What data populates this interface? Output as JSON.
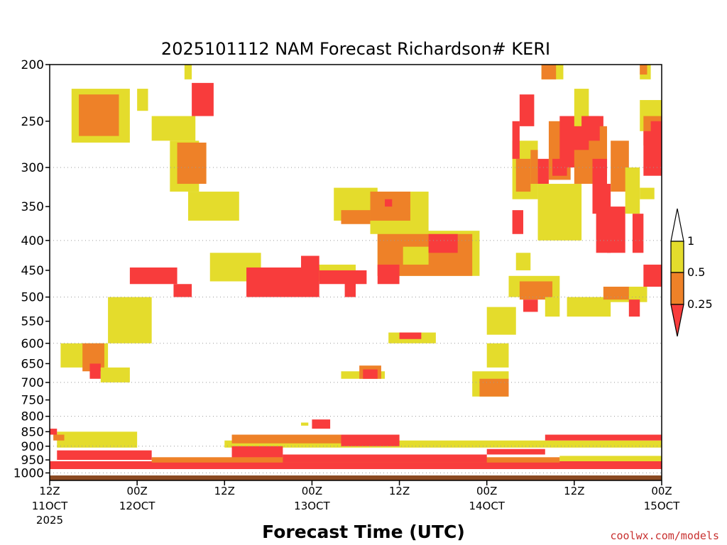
{
  "chart_data": {
    "type": "heatmap",
    "title": "2025101112 NAM Forecast Richardson# KERI",
    "xlabel": "Forecast Time (UTC)",
    "ylabel": "",
    "y_scale": "log",
    "ylim": [
      200,
      1030
    ],
    "xlim_hours": [
      0,
      84
    ],
    "y_ticks": [
      200,
      250,
      300,
      350,
      400,
      450,
      500,
      550,
      600,
      650,
      700,
      750,
      800,
      850,
      900,
      950,
      1000
    ],
    "y_gridlines": [
      300,
      400,
      500,
      600,
      700,
      800,
      900,
      1000
    ],
    "x_ticks": [
      {
        "hour": 0,
        "top": "12Z",
        "bottom": "11OCT",
        "extra": "2025"
      },
      {
        "hour": 12,
        "top": "00Z",
        "bottom": "12OCT",
        "extra": ""
      },
      {
        "hour": 24,
        "top": "12Z",
        "bottom": "",
        "extra": ""
      },
      {
        "hour": 36,
        "top": "00Z",
        "bottom": "13OCT",
        "extra": ""
      },
      {
        "hour": 48,
        "top": "12Z",
        "bottom": "",
        "extra": ""
      },
      {
        "hour": 60,
        "top": "00Z",
        "bottom": "14OCT",
        "extra": ""
      },
      {
        "hour": 72,
        "top": "12Z",
        "bottom": "",
        "extra": ""
      },
      {
        "hour": 84,
        "top": "00Z",
        "bottom": "15OCT",
        "extra": ""
      }
    ],
    "colorbar": {
      "levels": [
        0.25,
        0.5,
        1
      ],
      "labels": [
        "0.25",
        "0.5",
        "1"
      ],
      "colors": {
        "lt_0.25": "#f83c3c",
        "0.25_0.5": "#ee8128",
        "0.5_1": "#e4dc2c",
        "gt_1": "#ffffff"
      }
    },
    "colors": {
      "band_lt_0.25": "#f83c3c",
      "band_0.25_0.5": "#ee8128",
      "band_0.5_1": "#e4dc2c",
      "ground": "#8b4a22"
    },
    "ground_below_hpa": 1010,
    "regions": [
      {
        "band": "0.5_1",
        "h": [
          3,
          11
        ],
        "p": [
          220,
          272
        ]
      },
      {
        "band": "0.25_0.5",
        "h": [
          4,
          9.5
        ],
        "p": [
          225,
          265
        ]
      },
      {
        "band": "0.5_1",
        "h": [
          12,
          13.5
        ],
        "p": [
          220,
          240
        ]
      },
      {
        "band": "0.5_1",
        "h": [
          14,
          20
        ],
        "p": [
          245,
          270
        ]
      },
      {
        "band": "0.5_1",
        "h": [
          16.5,
          20.5
        ],
        "p": [
          270,
          330
        ]
      },
      {
        "band": "0.25_0.5",
        "h": [
          17.5,
          21.5
        ],
        "p": [
          272,
          320
        ]
      },
      {
        "band": "0.5_1",
        "h": [
          19,
          26
        ],
        "p": [
          330,
          370
        ]
      },
      {
        "band": "lt_0.25",
        "h": [
          19.5,
          22.5
        ],
        "p": [
          215,
          245
        ]
      },
      {
        "band": "0.5_1",
        "h": [
          18.5,
          19.5
        ],
        "p": [
          200,
          212
        ]
      },
      {
        "band": "0.5_1",
        "h": [
          39,
          45
        ],
        "p": [
          325,
          370
        ]
      },
      {
        "band": "0.25_0.5",
        "h": [
          40,
          44
        ],
        "p": [
          355,
          375
        ]
      },
      {
        "band": "0.5_1",
        "h": [
          44,
          52
        ],
        "p": [
          330,
          390
        ]
      },
      {
        "band": "0.25_0.5",
        "h": [
          44,
          49.5
        ],
        "p": [
          330,
          370
        ]
      },
      {
        "band": "lt_0.25",
        "h": [
          46,
          47
        ],
        "p": [
          340,
          350
        ]
      },
      {
        "band": "0.5_1",
        "h": [
          45,
          59
        ],
        "p": [
          385,
          460
        ]
      },
      {
        "band": "0.25_0.5",
        "h": [
          45,
          58
        ],
        "p": [
          390,
          460
        ]
      },
      {
        "band": "0.5_1",
        "h": [
          48.5,
          52
        ],
        "p": [
          410,
          440
        ]
      },
      {
        "band": "lt_0.25",
        "h": [
          52,
          56
        ],
        "p": [
          390,
          420
        ]
      },
      {
        "band": "lt_0.25",
        "h": [
          45,
          48
        ],
        "p": [
          440,
          475
        ]
      },
      {
        "band": "0.5_1",
        "h": [
          22,
          29
        ],
        "p": [
          420,
          470
        ]
      },
      {
        "band": "0.5_1",
        "h": [
          36,
          42
        ],
        "p": [
          440,
          470
        ]
      },
      {
        "band": "lt_0.25",
        "h": [
          27,
          37
        ],
        "p": [
          445,
          500
        ]
      },
      {
        "band": "lt_0.25",
        "h": [
          34.5,
          37
        ],
        "p": [
          425,
          450
        ]
      },
      {
        "band": "lt_0.25",
        "h": [
          37,
          43.5
        ],
        "p": [
          450,
          475
        ]
      },
      {
        "band": "lt_0.25",
        "h": [
          40.5,
          42
        ],
        "p": [
          470,
          500
        ]
      },
      {
        "band": "lt_0.25",
        "h": [
          11,
          17.5
        ],
        "p": [
          445,
          475
        ]
      },
      {
        "band": "lt_0.25",
        "h": [
          17,
          19.5
        ],
        "p": [
          475,
          500
        ]
      },
      {
        "band": "0.5_1",
        "h": [
          8,
          14
        ],
        "p": [
          500,
          600
        ]
      },
      {
        "band": "0.5_1",
        "h": [
          1.5,
          8
        ],
        "p": [
          600,
          660
        ]
      },
      {
        "band": "0.25_0.5",
        "h": [
          4.5,
          7.5
        ],
        "p": [
          600,
          670
        ]
      },
      {
        "band": "lt_0.25",
        "h": [
          5.5,
          7
        ],
        "p": [
          650,
          690
        ]
      },
      {
        "band": "0.5_1",
        "h": [
          7,
          11
        ],
        "p": [
          660,
          700
        ]
      },
      {
        "band": "0.5_1",
        "h": [
          40,
          46
        ],
        "p": [
          670,
          690
        ]
      },
      {
        "band": "0.25_0.5",
        "h": [
          42.5,
          45.5
        ],
        "p": [
          655,
          690
        ]
      },
      {
        "band": "lt_0.25",
        "h": [
          43,
          45
        ],
        "p": [
          665,
          690
        ]
      },
      {
        "band": "0.5_1",
        "h": [
          46.5,
          53
        ],
        "p": [
          575,
          600
        ]
      },
      {
        "band": "lt_0.25",
        "h": [
          48,
          51
        ],
        "p": [
          575,
          590
        ]
      },
      {
        "band": "0.5_1",
        "h": [
          58,
          63
        ],
        "p": [
          670,
          740
        ]
      },
      {
        "band": "0.25_0.5",
        "h": [
          59,
          63
        ],
        "p": [
          690,
          740
        ]
      },
      {
        "band": "0.5_1",
        "h": [
          60,
          63
        ],
        "p": [
          600,
          660
        ]
      },
      {
        "band": "0.5_1",
        "h": [
          60,
          64
        ],
        "p": [
          520,
          580
        ]
      },
      {
        "band": "0.5_1",
        "h": [
          63,
          70
        ],
        "p": [
          460,
          500
        ]
      },
      {
        "band": "0.25_0.5",
        "h": [
          64.5,
          69
        ],
        "p": [
          470,
          505
        ]
      },
      {
        "band": "lt_0.25",
        "h": [
          65,
          67
        ],
        "p": [
          505,
          530
        ]
      },
      {
        "band": "0.5_1",
        "h": [
          64,
          66
        ],
        "p": [
          420,
          450
        ]
      },
      {
        "band": "0.5_1",
        "h": [
          68,
          70
        ],
        "p": [
          500,
          540
        ]
      },
      {
        "band": "0.5_1",
        "h": [
          71,
          77
        ],
        "p": [
          500,
          540
        ]
      },
      {
        "band": "0.5_1",
        "h": [
          76,
          82
        ],
        "p": [
          480,
          510
        ]
      },
      {
        "band": "0.25_0.5",
        "h": [
          76,
          79.5
        ],
        "p": [
          480,
          505
        ]
      },
      {
        "band": "lt_0.25",
        "h": [
          79.5,
          81
        ],
        "p": [
          505,
          540
        ]
      },
      {
        "band": "lt_0.25",
        "h": [
          81.5,
          84
        ],
        "p": [
          440,
          480
        ]
      },
      {
        "band": "0.5_1",
        "h": [
          63.5,
          67
        ],
        "p": [
          270,
          340
        ]
      },
      {
        "band": "0.25_0.5",
        "h": [
          64,
          66
        ],
        "p": [
          290,
          330
        ]
      },
      {
        "band": "lt_0.25",
        "h": [
          64.5,
          66.5
        ],
        "p": [
          225,
          255
        ]
      },
      {
        "band": "lt_0.25",
        "h": [
          63.5,
          64.5
        ],
        "p": [
          250,
          290
        ]
      },
      {
        "band": "lt_0.25",
        "h": [
          63.5,
          65
        ],
        "p": [
          355,
          390
        ]
      },
      {
        "band": "0.25_0.5",
        "h": [
          66,
          67
        ],
        "p": [
          280,
          320
        ]
      },
      {
        "band": "lt_0.25",
        "h": [
          67,
          68.5
        ],
        "p": [
          290,
          320
        ]
      },
      {
        "band": "lt_0.25",
        "h": [
          68,
          70
        ],
        "p": [
          355,
          385
        ]
      },
      {
        "band": "0.5_1",
        "h": [
          67,
          73
        ],
        "p": [
          320,
          400
        ]
      },
      {
        "band": "0.25_0.5",
        "h": [
          68.5,
          71.5
        ],
        "p": [
          250,
          315
        ]
      },
      {
        "band": "lt_0.25",
        "h": [
          69,
          71
        ],
        "p": [
          290,
          310
        ]
      },
      {
        "band": "lt_0.25",
        "h": [
          70,
          76
        ],
        "p": [
          245,
          300
        ]
      },
      {
        "band": "0.25_0.5",
        "h": [
          72,
          75
        ],
        "p": [
          280,
          320
        ]
      },
      {
        "band": "0.25_0.5",
        "h": [
          74,
          76.5
        ],
        "p": [
          255,
          310
        ]
      },
      {
        "band": "lt_0.25",
        "h": [
          74.5,
          76.5
        ],
        "p": [
          290,
          360
        ]
      },
      {
        "band": "lt_0.25",
        "h": [
          75,
          77
        ],
        "p": [
          320,
          420
        ]
      },
      {
        "band": "0.5_1",
        "h": [
          72,
          74
        ],
        "p": [
          220,
          255
        ]
      },
      {
        "band": "lt_0.25",
        "h": [
          73,
          75.5
        ],
        "p": [
          245,
          270
        ]
      },
      {
        "band": "0.25_0.5",
        "h": [
          77,
          79.5
        ],
        "p": [
          270,
          330
        ]
      },
      {
        "band": "lt_0.25",
        "h": [
          76.5,
          79
        ],
        "p": [
          350,
          420
        ]
      },
      {
        "band": "0.5_1",
        "h": [
          79,
          81
        ],
        "p": [
          300,
          360
        ]
      },
      {
        "band": "lt_0.25",
        "h": [
          80,
          81.5
        ],
        "p": [
          360,
          420
        ]
      },
      {
        "band": "0.5_1",
        "h": [
          81,
          84
        ],
        "p": [
          230,
          260
        ]
      },
      {
        "band": "0.25_0.5",
        "h": [
          81.5,
          84
        ],
        "p": [
          245,
          275
        ]
      },
      {
        "band": "lt_0.25",
        "h": [
          81.5,
          84
        ],
        "p": [
          260,
          310
        ]
      },
      {
        "band": "lt_0.25",
        "h": [
          82.5,
          84
        ],
        "p": [
          250,
          270
        ]
      },
      {
        "band": "0.5_1",
        "h": [
          81,
          83
        ],
        "p": [
          325,
          340
        ]
      },
      {
        "band": "0.5_1",
        "h": [
          67.5,
          70.5
        ],
        "p": [
          200,
          212
        ]
      },
      {
        "band": "0.25_0.5",
        "h": [
          67.5,
          69.5
        ],
        "p": [
          200,
          212
        ]
      },
      {
        "band": "0.5_1",
        "h": [
          81,
          82.5
        ],
        "p": [
          200,
          212
        ]
      },
      {
        "band": "0.25_0.5",
        "h": [
          81,
          82
        ],
        "p": [
          200,
          208
        ]
      },
      {
        "band": "0.5_1",
        "h": [
          34.5,
          35.5
        ],
        "p": [
          820,
          830
        ]
      },
      {
        "band": "lt_0.25",
        "h": [
          36,
          38.5
        ],
        "p": [
          810,
          840
        ]
      },
      {
        "band": "0.5_1",
        "h": [
          1,
          12
        ],
        "p": [
          850,
          905
        ]
      },
      {
        "band": "lt_0.25",
        "h": [
          0,
          1
        ],
        "p": [
          840,
          860
        ]
      },
      {
        "band": "0.25_0.5",
        "h": [
          0.5,
          2
        ],
        "p": [
          860,
          880
        ]
      },
      {
        "band": "lt_0.25",
        "h": [
          1,
          14
        ],
        "p": [
          915,
          950
        ]
      },
      {
        "band": "0.5_1",
        "h": [
          24,
          84
        ],
        "p": [
          880,
          905
        ]
      },
      {
        "band": "0.25_0.5",
        "h": [
          25,
          48
        ],
        "p": [
          860,
          890
        ]
      },
      {
        "band": "lt_0.25",
        "h": [
          25,
          32
        ],
        "p": [
          900,
          960
        ]
      },
      {
        "band": "lt_0.25",
        "h": [
          40,
          48
        ],
        "p": [
          860,
          900
        ]
      },
      {
        "band": "lt_0.25",
        "h": [
          68,
          84
        ],
        "p": [
          860,
          880
        ]
      },
      {
        "band": "lt_0.25",
        "h": [
          60,
          68
        ],
        "p": [
          910,
          930
        ]
      },
      {
        "band": "lt_0.25",
        "h": [
          0,
          84
        ],
        "p": [
          955,
          985
        ]
      },
      {
        "band": "0.25_0.5",
        "h": [
          14,
          70
        ],
        "p": [
          940,
          960
        ]
      },
      {
        "band": "lt_0.25",
        "h": [
          32,
          60
        ],
        "p": [
          930,
          960
        ]
      },
      {
        "band": "0.5_1",
        "h": [
          70,
          84
        ],
        "p": [
          935,
          955
        ]
      }
    ]
  },
  "credit": "coolwx.com/models"
}
